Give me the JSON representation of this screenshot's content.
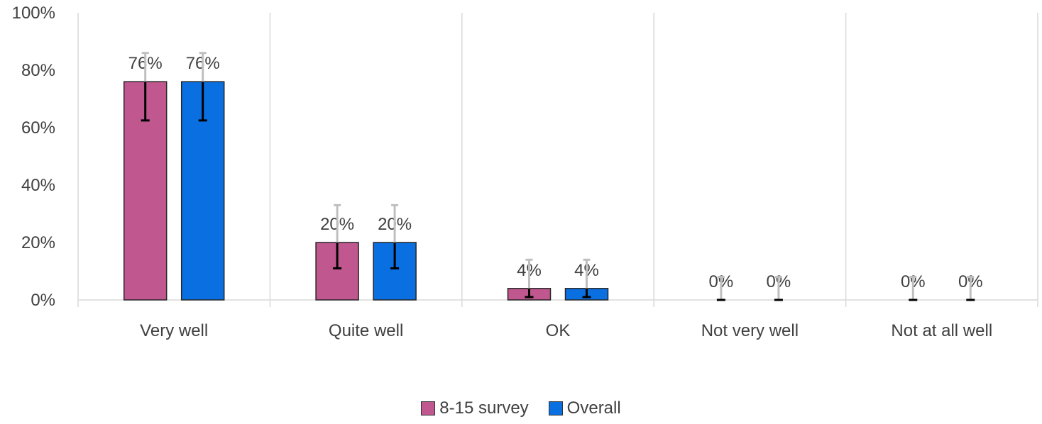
{
  "chart_data": {
    "type": "bar",
    "categories": [
      "Very well",
      "Quite well",
      "OK",
      "Not very well",
      "Not at all well"
    ],
    "series": [
      {
        "name": "8-15 survey",
        "color": "#c0578f",
        "values": [
          76,
          20,
          4,
          0,
          0
        ],
        "labels": [
          "76%",
          "20%",
          "4%",
          "0%",
          "0%"
        ],
        "error_low": [
          62.5,
          11,
          1,
          0,
          0
        ],
        "error_high": [
          86,
          33,
          14,
          8,
          8
        ]
      },
      {
        "name": "Overall",
        "color": "#0a6fe0",
        "values": [
          76,
          20,
          4,
          0,
          0
        ],
        "labels": [
          "76%",
          "20%",
          "4%",
          "0%",
          "0%"
        ],
        "error_low": [
          62.5,
          11,
          1,
          0,
          0
        ],
        "error_high": [
          86,
          33,
          14,
          8,
          8
        ]
      }
    ],
    "y_ticks": [
      "0%",
      "20%",
      "40%",
      "60%",
      "80%",
      "100%"
    ],
    "ylim": [
      0,
      100
    ],
    "grid": "vertical category separators",
    "legend_position": "bottom-center"
  }
}
